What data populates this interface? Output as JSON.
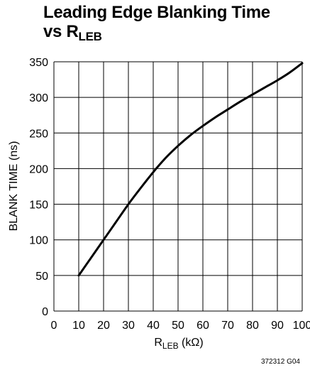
{
  "chart_data": {
    "type": "line",
    "title_main": "Leading Edge Blanking Time",
    "title_prefix": "vs R",
    "title_sub": "LEB",
    "xlabel_main": "R",
    "xlabel_sub": "LEB",
    "xlabel_unit": " (kΩ)",
    "ylabel": "BLANK TIME (ns)",
    "xlim": [
      0,
      100
    ],
    "ylim": [
      0,
      350
    ],
    "x_ticks": [
      "0",
      "10",
      "20",
      "30",
      "40",
      "50",
      "60",
      "70",
      "80",
      "90",
      "100"
    ],
    "y_ticks": [
      "0",
      "50",
      "100",
      "150",
      "200",
      "250",
      "300",
      "350"
    ],
    "grid": true,
    "series": [
      {
        "x": [
          10,
          15,
          20,
          25,
          30,
          35,
          40,
          45,
          50,
          55,
          60,
          65,
          70,
          75,
          80,
          85,
          90,
          95,
          100
        ],
        "y": [
          50,
          75,
          100,
          125,
          150,
          173,
          195,
          215,
          232,
          247,
          260,
          272,
          283,
          294,
          304,
          314,
          324,
          335,
          348
        ]
      }
    ],
    "figure_id": "372312 G04"
  }
}
